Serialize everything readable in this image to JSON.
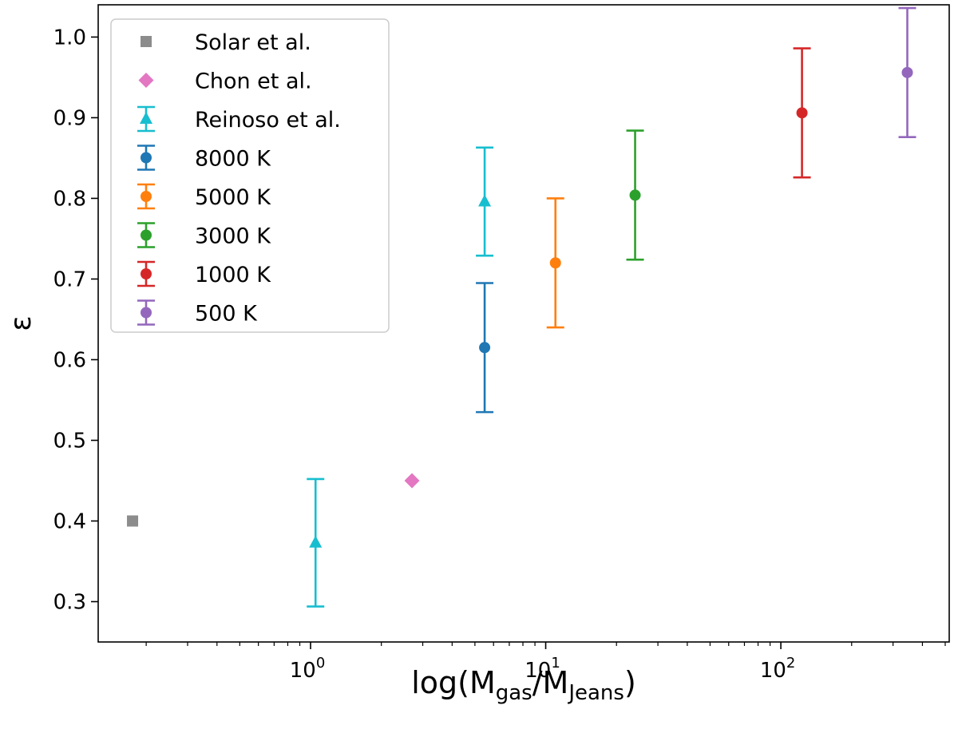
{
  "chart_data": {
    "type": "scatter",
    "title": "",
    "xlabel_parts": [
      "log(M",
      "gas",
      "/M",
      "Jeans",
      ")"
    ],
    "ylabel": "ε",
    "xscale": "log",
    "xlim": [
      0.125,
      520
    ],
    "ylim": [
      0.25,
      1.04
    ],
    "yticks": [
      0.3,
      0.4,
      0.5,
      0.6,
      0.7,
      0.8,
      0.9,
      1.0
    ],
    "ytick_labels": [
      "0.3",
      "0.4",
      "0.5",
      "0.6",
      "0.7",
      "0.8",
      "0.9",
      "1.0"
    ],
    "xticks": [
      {
        "value": 1,
        "base": "10",
        "exp": "0"
      },
      {
        "value": 10,
        "base": "10",
        "exp": "1"
      },
      {
        "value": 100,
        "base": "10",
        "exp": "2"
      }
    ],
    "legend_position": "upper-left",
    "series": [
      {
        "name": "Solar et al.",
        "color": "#8c8c8c",
        "marker": "square",
        "errorbar": false,
        "points": [
          {
            "x": 0.175,
            "y": 0.4
          }
        ]
      },
      {
        "name": "Chon et al.",
        "color": "#e377c2",
        "marker": "diamond",
        "errorbar": false,
        "points": [
          {
            "x": 2.7,
            "y": 0.45
          }
        ]
      },
      {
        "name": "Reinoso et al.",
        "color": "#17becf",
        "marker": "triangle",
        "errorbar": true,
        "points": [
          {
            "x": 1.05,
            "y": 0.373,
            "err": 0.079
          },
          {
            "x": 5.5,
            "y": 0.796,
            "err": 0.067
          }
        ]
      },
      {
        "name": "8000 K",
        "color": "#1f77b4",
        "marker": "circle",
        "errorbar": true,
        "points": [
          {
            "x": 5.5,
            "y": 0.615,
            "err": 0.08
          }
        ]
      },
      {
        "name": "5000 K",
        "color": "#ff7f0e",
        "marker": "circle",
        "errorbar": true,
        "points": [
          {
            "x": 11.0,
            "y": 0.72,
            "err": 0.08
          }
        ]
      },
      {
        "name": "3000 K",
        "color": "#2ca02c",
        "marker": "circle",
        "errorbar": true,
        "points": [
          {
            "x": 24.0,
            "y": 0.804,
            "err": 0.08
          }
        ]
      },
      {
        "name": "1000 K",
        "color": "#d62728",
        "marker": "circle",
        "errorbar": true,
        "points": [
          {
            "x": 123.0,
            "y": 0.906,
            "err": 0.08
          }
        ]
      },
      {
        "name": "500 K",
        "color": "#9467bd",
        "marker": "circle",
        "errorbar": true,
        "points": [
          {
            "x": 345.0,
            "y": 0.956,
            "err": 0.08
          }
        ]
      }
    ]
  }
}
